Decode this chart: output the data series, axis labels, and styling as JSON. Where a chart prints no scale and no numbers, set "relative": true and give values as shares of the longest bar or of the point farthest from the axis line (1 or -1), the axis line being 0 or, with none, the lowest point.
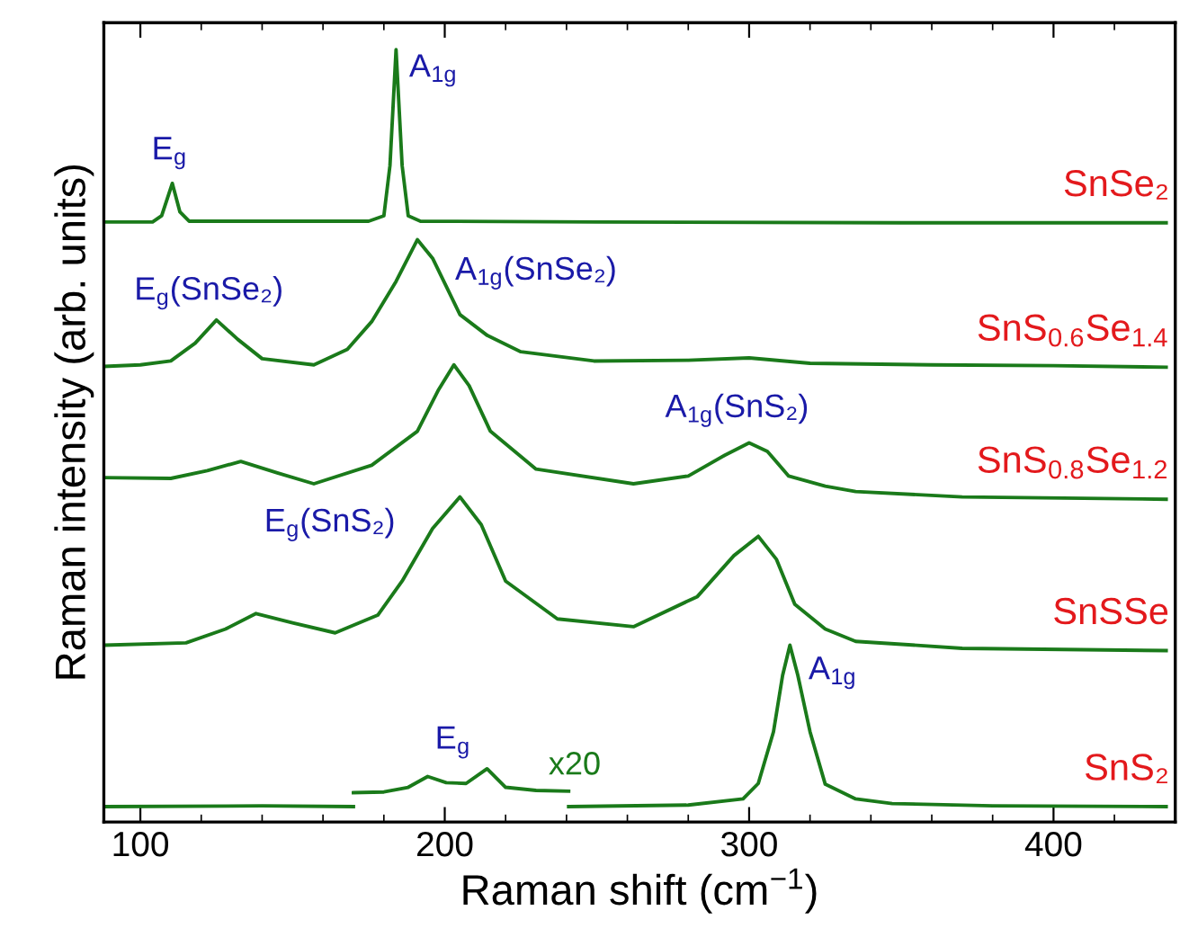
{
  "chart_data": {
    "type": "line",
    "relative": true,
    "xlabel": "Raman shift (cm$^{−1}$)",
    "ylabel": "Raman intensity (arb. units)",
    "xlim": [
      88,
      440
    ],
    "xticks": [
      100,
      {
        "value": 120,
        "label": null
      },
      {
        "value": 140,
        "label": null
      },
      {
        "value": 160,
        "label": null
      },
      {
        "value": 180,
        "label": null
      },
      200,
      {
        "value": 220,
        "label": null
      },
      {
        "value": 240,
        "label": null
      },
      {
        "value": 260,
        "label": null
      },
      {
        "value": 280,
        "label": null
      },
      300,
      {
        "value": 320,
        "label": null
      },
      {
        "value": 340,
        "label": null
      },
      {
        "value": 360,
        "label": null
      },
      {
        "value": 380,
        "label": null
      },
      400,
      {
        "value": 420,
        "label": null
      }
    ],
    "tick_labels": "x",
    "grid": false,
    "marker": "none",
    "line_style": "solid",
    "series": [
      {
        "name": "SnSe₂",
        "color": "#1a7a1a",
        "x": [
          88,
          104,
          107,
          110.5,
          113,
          116,
          150,
          175,
          180,
          182,
          184,
          186,
          188,
          192,
          250,
          350,
          437
        ],
        "values": [
          0.777,
          0.777,
          0.785,
          0.827,
          0.79,
          0.778,
          0.778,
          0.778,
          0.785,
          0.85,
          1.0,
          0.85,
          0.785,
          0.778,
          0.777,
          0.776,
          0.776
        ]
      },
      {
        "name": "SnS$_{0.6}$Se$_{1.4}$",
        "color": "#1a7a1a",
        "x": [
          88,
          100,
          110,
          118,
          125,
          132,
          140,
          157,
          168,
          176,
          184,
          191,
          196,
          205,
          214,
          225,
          249,
          280,
          300,
          320,
          360,
          400,
          437
        ],
        "values": [
          0.59,
          0.592,
          0.597,
          0.62,
          0.65,
          0.625,
          0.6,
          0.592,
          0.612,
          0.648,
          0.7,
          0.754,
          0.73,
          0.657,
          0.63,
          0.609,
          0.597,
          0.598,
          0.601,
          0.594,
          0.592,
          0.591,
          0.589
        ]
      },
      {
        "name": "SnS$_{0.8}$Se$_{1.2}$",
        "color": "#1a7a1a",
        "x": [
          88,
          110,
          122,
          133,
          145,
          157,
          176,
          191,
          198,
          203,
          208,
          215,
          230,
          262,
          280,
          292,
          300,
          306,
          313,
          325,
          335,
          370,
          437
        ],
        "values": [
          0.446,
          0.445,
          0.455,
          0.467,
          0.452,
          0.438,
          0.462,
          0.506,
          0.56,
          0.592,
          0.565,
          0.506,
          0.457,
          0.438,
          0.448,
          0.475,
          0.491,
          0.48,
          0.448,
          0.435,
          0.428,
          0.421,
          0.418
        ]
      },
      {
        "name": "SnSSe",
        "color": "#1a7a1a",
        "x": [
          88,
          115,
          128,
          138,
          150,
          164,
          178,
          186,
          196,
          205,
          212,
          220,
          237,
          262,
          283,
          295,
          303,
          309,
          315,
          325,
          335,
          370,
          437
        ],
        "values": [
          0.229,
          0.232,
          0.25,
          0.27,
          0.258,
          0.245,
          0.268,
          0.312,
          0.38,
          0.421,
          0.385,
          0.312,
          0.263,
          0.253,
          0.292,
          0.345,
          0.37,
          0.34,
          0.282,
          0.25,
          0.234,
          0.225,
          0.222
        ]
      },
      {
        "color": "#1a7a1a",
        "x": [
          88,
          140,
          170
        ],
        "values": [
          0.02,
          0.021,
          0.02
        ]
      },
      {
        "color": "#1a7a1a",
        "x": [
          170,
          180,
          188,
          194.4,
          200.5,
          207,
          213.9,
          220,
          230,
          240.7
        ],
        "values": [
          0.038,
          0.039,
          0.045,
          0.059,
          0.051,
          0.05,
          0.069,
          0.045,
          0.041,
          0.04
        ]
      },
      {
        "name": "SnS₂",
        "color": "#1a7a1a",
        "x": [
          240.7,
          280,
          298,
          303,
          308,
          311,
          313.4,
          316,
          320,
          325,
          335,
          347,
          380,
          437
        ],
        "values": [
          0.02,
          0.022,
          0.03,
          0.05,
          0.117,
          0.19,
          0.229,
          0.19,
          0.117,
          0.049,
          0.03,
          0.024,
          0.021,
          0.02
        ]
      }
    ],
    "annotations": [
      {
        "text": "E$_{g}$",
        "x": 110.5,
        "y": 0.827
      },
      {
        "text": "A$_{1g}$",
        "x": 184,
        "y": 1.0
      },
      {
        "text": "E$_{g}$(SnSe₂)",
        "x": 125,
        "y": 0.65
      },
      {
        "text": "A$_{1g}$(SnSe₂)",
        "x": 191,
        "y": 0.754
      },
      {
        "text": "A$_{1g}$(SnS₂)",
        "x": 300,
        "y": 0.491
      },
      {
        "text": "E$_{g}$(SnS₂)",
        "x": 205,
        "y": 0.421
      },
      {
        "text": "E$_{g}$",
        "x": 200.5,
        "y": 0.051
      },
      "x20",
      {
        "text": "A$_{1g}$",
        "x": 313.4,
        "y": 0.229
      }
    ]
  }
}
